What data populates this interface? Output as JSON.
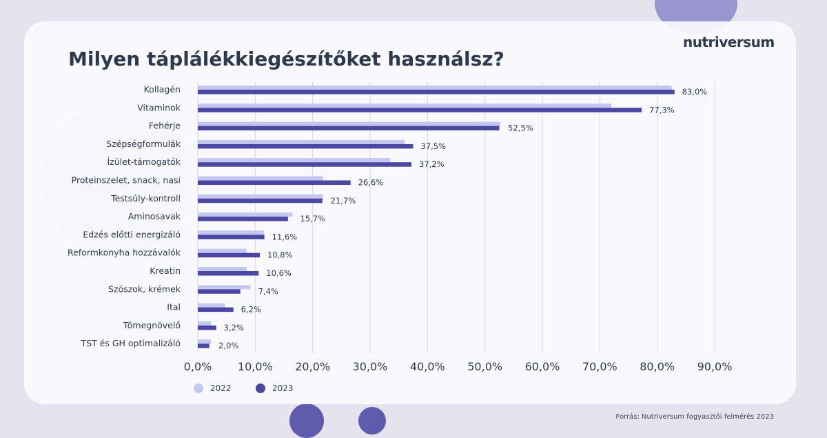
{
  "title": "Milyen táplálékkiegészítőket használsz?",
  "logo": "nutriversum",
  "source": "Forrás: Nutriversum fogyasztói felmérés 2023",
  "colors": {
    "series_2022": "#c3c8ef",
    "series_2023": "#4b47a3",
    "title": "#2d3a4e",
    "text": "#2d3a4e"
  },
  "chart_data": {
    "type": "bar",
    "orientation": "horizontal",
    "categories": [
      "Kollagén",
      "Vitaminok",
      "Fehérje",
      "Szépségformulák",
      "Ízület-támogatók",
      "Proteinszelet, snack, nasi",
      "Testsúly-kontroll",
      "Aminosavak",
      "Edzés előtti energizáló",
      "Reformkonyha hozzávalók",
      "Kreatin",
      "Szószok, krémek",
      "Ital",
      "Tömegnövelő",
      "TST és GH optimalizáló"
    ],
    "series": [
      {
        "name": "2022",
        "values": [
          82.5,
          72.0,
          52.7,
          36.0,
          33.5,
          21.8,
          21.8,
          16.5,
          11.5,
          8.5,
          8.5,
          9.2,
          4.7,
          2.3,
          2.3
        ]
      },
      {
        "name": "2023",
        "values": [
          83.0,
          77.3,
          52.5,
          37.5,
          37.2,
          26.6,
          21.7,
          15.7,
          11.6,
          10.8,
          10.6,
          7.4,
          6.2,
          3.2,
          2.0
        ]
      }
    ],
    "data_labels_2023": [
      "83,0%",
      "77,3%",
      "52,5%",
      "37,5%",
      "37,2%",
      "26,6%",
      "21,7%",
      "15,7%",
      "11,6%",
      "10,8%",
      "10,6%",
      "7,4%",
      "6,2%",
      "3,2%",
      "2,0%"
    ],
    "x_ticks": [
      "0,0%",
      "10,0%",
      "20,0%",
      "30,0%",
      "40,0%",
      "50,0%",
      "60,0%",
      "70,0%",
      "80,0%",
      "90,0%"
    ],
    "xlim": [
      0,
      90
    ],
    "grid": true,
    "legend": "bottom-left"
  }
}
